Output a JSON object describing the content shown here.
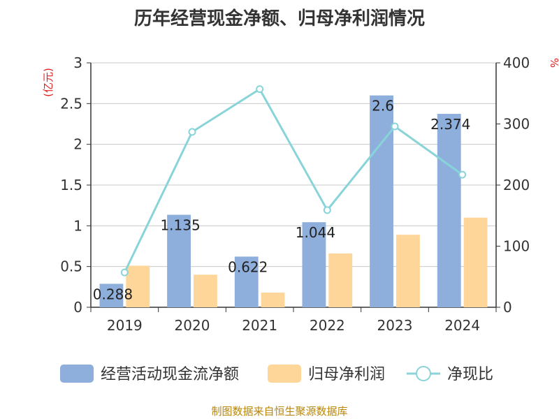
{
  "chart_data": {
    "type": "bar",
    "title": "历年经营现金净额、归母净利润情况",
    "categories": [
      "2019",
      "2020",
      "2021",
      "2022",
      "2023",
      "2024"
    ],
    "ylabel_left": "(亿元)",
    "ylabel_right": "%",
    "ylim_left": [
      0,
      3
    ],
    "ylim_right": [
      0,
      400
    ],
    "yticks_left": [
      "0",
      "0.5",
      "1",
      "1.5",
      "2",
      "2.5",
      "3"
    ],
    "yticks_right": [
      "0",
      "100",
      "200",
      "300",
      "400"
    ],
    "grid": true,
    "legend_position": "bottom",
    "series": [
      {
        "name": "经营活动现金流净额",
        "kind": "bar",
        "axis": "left",
        "color": "#8eaedc",
        "values": [
          0.288,
          1.135,
          0.622,
          1.044,
          2.6,
          2.374
        ],
        "labels": [
          "0.288",
          "1.135",
          "0.622",
          "1.044",
          "2.6",
          "2.374"
        ]
      },
      {
        "name": "归母净利润",
        "kind": "bar",
        "axis": "left",
        "color": "#ffd699",
        "values": [
          0.51,
          0.4,
          0.18,
          0.66,
          0.89,
          1.1
        ]
      },
      {
        "name": "净现比",
        "kind": "line",
        "axis": "right",
        "color": "#88d4d8",
        "values": [
          57,
          287,
          357,
          159,
          296,
          217
        ]
      }
    ]
  },
  "footer": {
    "source": "制图数据来自恒生聚源数据库"
  }
}
